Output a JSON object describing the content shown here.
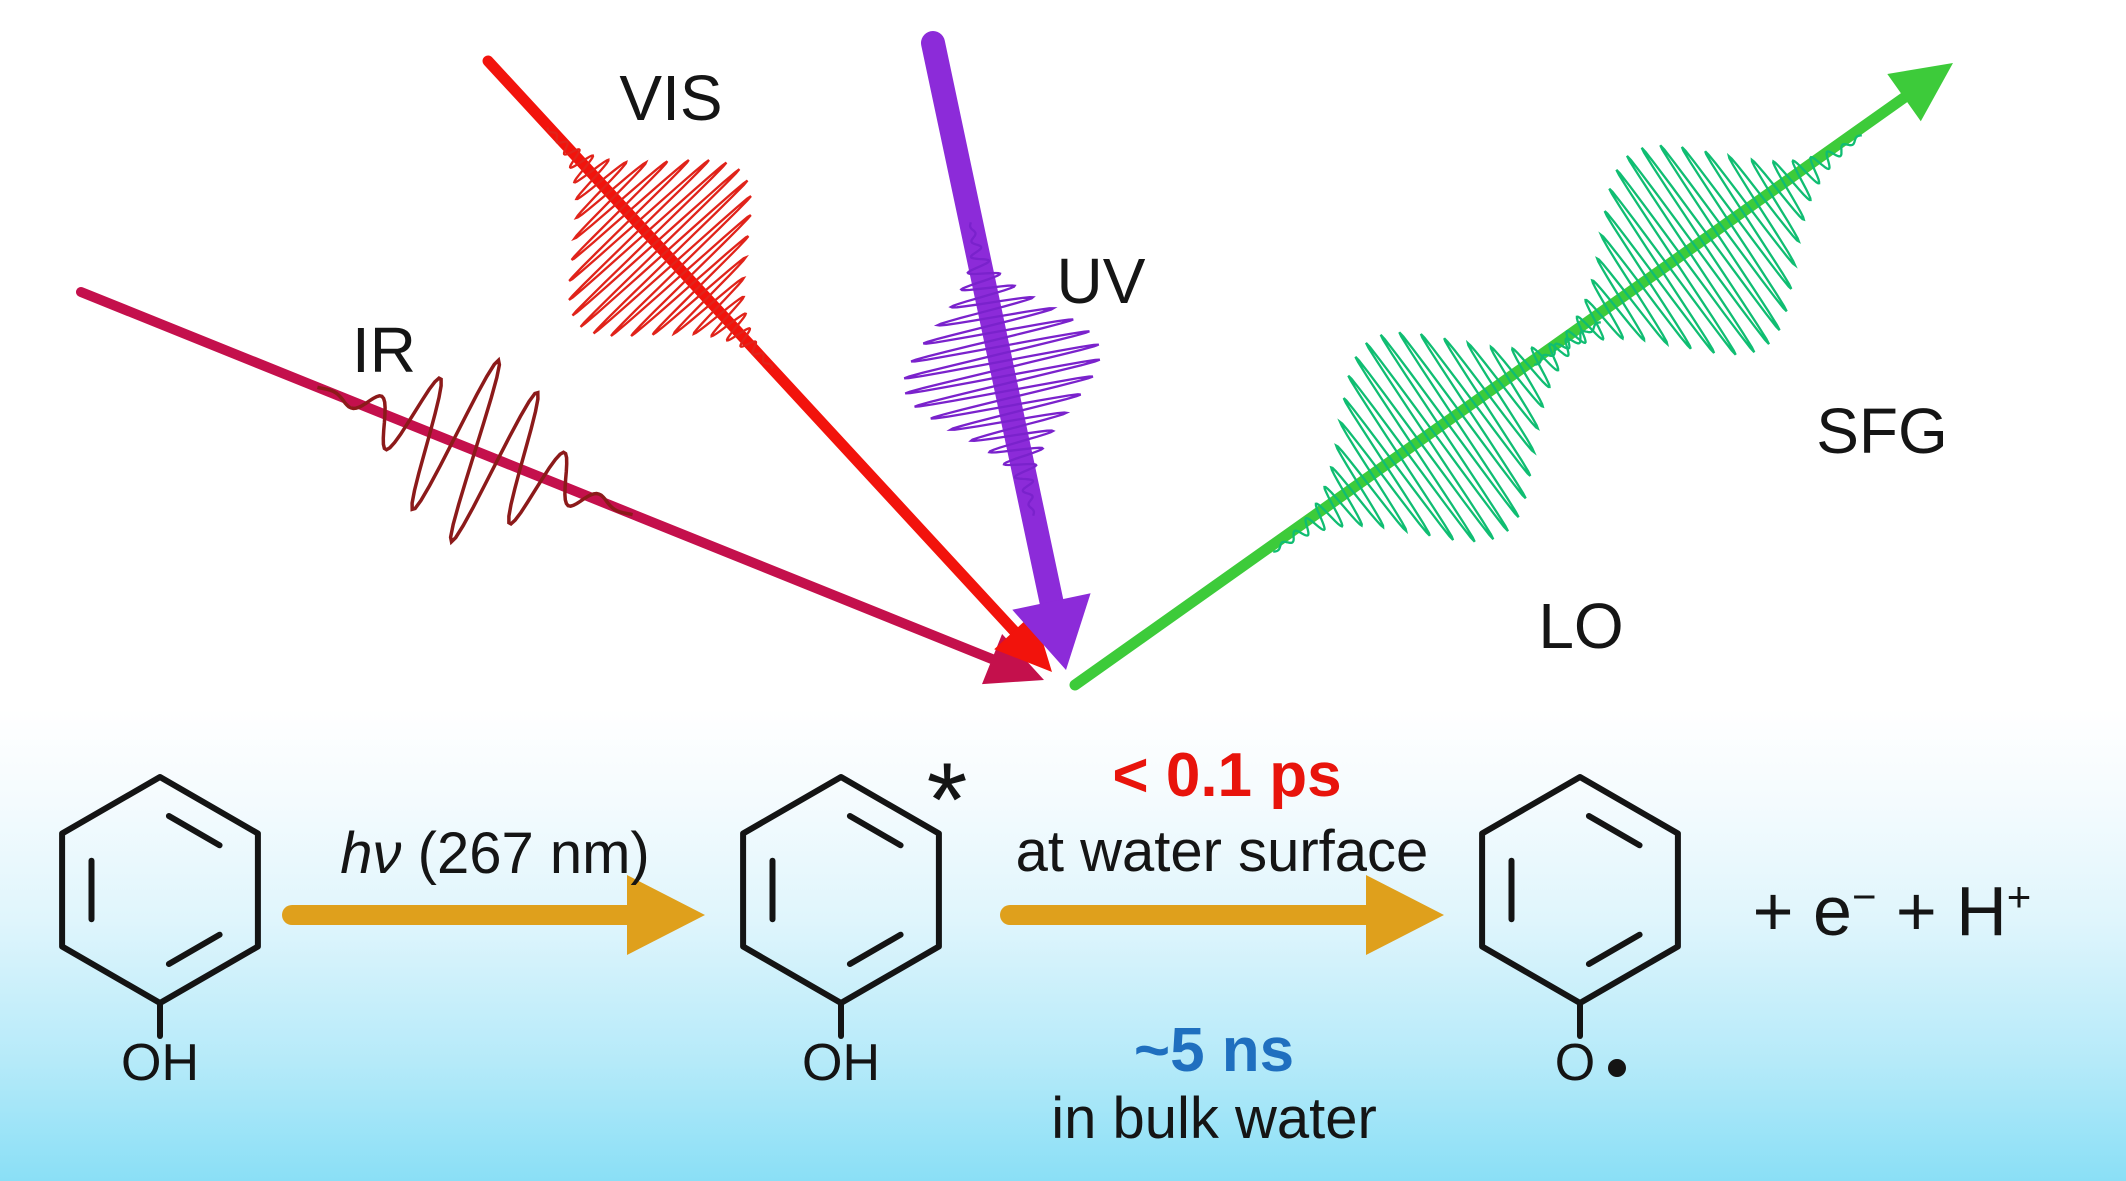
{
  "beam_diagram": {
    "ir_label": "IR",
    "vis_label": "VIS",
    "uv_label": "UV",
    "lo_label": "LO",
    "sfg_label": "SFG",
    "colors": {
      "ir_beam": "#C4104C",
      "ir_packet": "#8C1A1A",
      "vis_beam": "#F2130C",
      "vis_packet": "#E0231A",
      "uv_beam": "#8C2BD9",
      "uv_packet": "#7A22CC",
      "out_beam": "#3DCB3A",
      "out_packet": "#10BD72"
    }
  },
  "reaction": {
    "arrow_color": "#DFA01C",
    "reactant_oh": "OH",
    "excited_oh": "OH",
    "excited_star": "*",
    "photon_italic": "hν",
    "photon_rest": " (267 nm)",
    "surface_time": "< 0.1 ps",
    "surface_time_color": "#E8140C",
    "surface_place": "at water surface",
    "bulk_time": "~5 ns",
    "bulk_time_color": "#1F6FBF",
    "bulk_place": "in bulk water",
    "phenoxy_o": "O",
    "products_prefix": "+ e",
    "products_sup1": "−",
    "products_mid": " + H",
    "products_sup2": "+"
  }
}
